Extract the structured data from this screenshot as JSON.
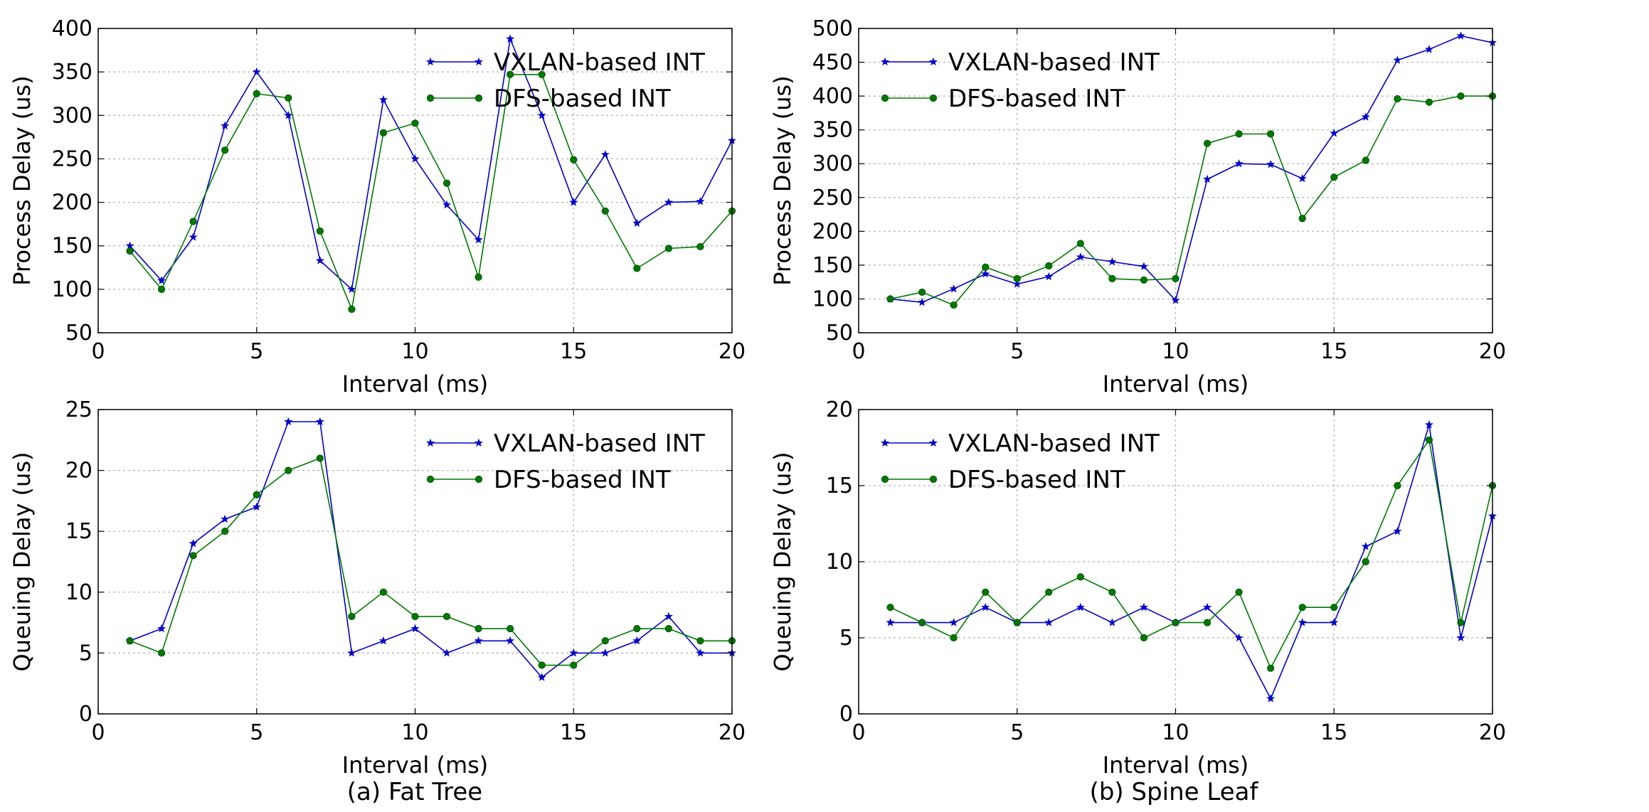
{
  "colors": {
    "vxlan": "#0000cc",
    "dfs": "#007a00",
    "dfs_edge": "#004d00"
  },
  "captions": [
    "(a) Fat Tree",
    "(b) Spine Leaf"
  ],
  "chart_data": [
    {
      "type": "line",
      "xlabel": "Interval (ms)",
      "ylabel": "Process Delay (us)",
      "xlim": [
        0,
        20
      ],
      "xticks": [
        0,
        5,
        10,
        15,
        20
      ],
      "ylim": [
        50,
        400
      ],
      "yticks": [
        50,
        100,
        150,
        200,
        250,
        300,
        350,
        400
      ],
      "grid": true,
      "legend": "top-right",
      "x": [
        1,
        2,
        3,
        4,
        5,
        6,
        7,
        8,
        9,
        10,
        11,
        12,
        13,
        14,
        15,
        16,
        17,
        18,
        19,
        20
      ],
      "series": [
        {
          "name": "VXLAN-based INT",
          "marker": "star",
          "color": "vxlan",
          "values": [
            150,
            110,
            160,
            288,
            350,
            300,
            133,
            100,
            318,
            250,
            197,
            157,
            388,
            300,
            200,
            255,
            176,
            200,
            201,
            271
          ]
        },
        {
          "name": "DFS-based INT",
          "marker": "circle",
          "color": "dfs",
          "values": [
            144,
            100,
            178,
            260,
            325,
            320,
            167,
            77,
            280,
            291,
            222,
            114,
            347,
            347,
            249,
            190,
            124,
            147,
            149,
            190
          ]
        }
      ]
    },
    {
      "type": "line",
      "xlabel": "Interval (ms)",
      "ylabel": "Process Delay (us)",
      "xlim": [
        0,
        20
      ],
      "xticks": [
        0,
        5,
        10,
        15,
        20
      ],
      "ylim": [
        50,
        500
      ],
      "yticks": [
        50,
        100,
        150,
        200,
        250,
        300,
        350,
        400,
        450,
        500
      ],
      "grid": true,
      "legend": "top-left",
      "x": [
        1,
        2,
        3,
        4,
        5,
        6,
        7,
        8,
        9,
        10,
        11,
        12,
        13,
        14,
        15,
        16,
        17,
        18,
        19,
        20
      ],
      "series": [
        {
          "name": "VXLAN-based INT",
          "marker": "star",
          "color": "vxlan",
          "values": [
            100,
            95,
            115,
            137,
            122,
            133,
            162,
            155,
            148,
            98,
            277,
            300,
            299,
            278,
            345,
            369,
            453,
            469,
            489,
            479
          ]
        },
        {
          "name": "DFS-based INT",
          "marker": "circle",
          "color": "dfs",
          "values": [
            100,
            110,
            91,
            147,
            130,
            149,
            182,
            130,
            128,
            130,
            330,
            344,
            344,
            219,
            280,
            305,
            396,
            391,
            400,
            400
          ]
        }
      ]
    },
    {
      "type": "line",
      "xlabel": "Interval (ms)",
      "ylabel": "Queuing Delay (us)",
      "xlim": [
        0,
        20
      ],
      "xticks": [
        0,
        5,
        10,
        15,
        20
      ],
      "ylim": [
        0,
        25
      ],
      "yticks": [
        0,
        5,
        10,
        15,
        20,
        25
      ],
      "grid": true,
      "legend": "top-right",
      "x": [
        1,
        2,
        3,
        4,
        5,
        6,
        7,
        8,
        9,
        10,
        11,
        12,
        13,
        14,
        15,
        16,
        17,
        18,
        19,
        20
      ],
      "series": [
        {
          "name": "VXLAN-based INT",
          "marker": "star",
          "color": "vxlan",
          "values": [
            6,
            7,
            14,
            16,
            17,
            24,
            24,
            5,
            6,
            7,
            5,
            6,
            6,
            3,
            5,
            5,
            6,
            8,
            5,
            5
          ]
        },
        {
          "name": "DFS-based INT",
          "marker": "circle",
          "color": "dfs",
          "values": [
            6,
            5,
            13,
            15,
            18,
            20,
            21,
            8,
            10,
            8,
            8,
            7,
            7,
            4,
            4,
            6,
            7,
            7,
            6,
            6
          ]
        }
      ]
    },
    {
      "type": "line",
      "xlabel": "Interval (ms)",
      "ylabel": "Queuing Delay (us)",
      "xlim": [
        0,
        20
      ],
      "xticks": [
        0,
        5,
        10,
        15,
        20
      ],
      "ylim": [
        0,
        20
      ],
      "yticks": [
        0,
        5,
        10,
        15,
        20
      ],
      "grid": true,
      "legend": "top-left",
      "x": [
        1,
        2,
        3,
        4,
        5,
        6,
        7,
        8,
        9,
        10,
        11,
        12,
        13,
        14,
        15,
        16,
        17,
        18,
        19,
        20
      ],
      "series": [
        {
          "name": "VXLAN-based INT",
          "marker": "star",
          "color": "vxlan",
          "values": [
            6,
            6,
            6,
            7,
            6,
            6,
            7,
            6,
            7,
            6,
            7,
            5,
            1,
            6,
            6,
            11,
            12,
            19,
            5,
            13
          ]
        },
        {
          "name": "DFS-based INT",
          "marker": "circle",
          "color": "dfs",
          "values": [
            7,
            6,
            5,
            8,
            6,
            8,
            9,
            8,
            5,
            6,
            6,
            8,
            3,
            7,
            7,
            10,
            15,
            18,
            6,
            15
          ]
        }
      ]
    }
  ]
}
